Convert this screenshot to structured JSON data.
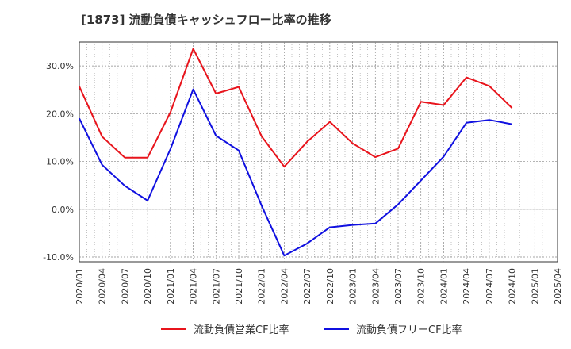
{
  "chart_data": {
    "type": "line",
    "title": "[1873]  流動負債キャッシュフロー比率の推移",
    "xlabel": "",
    "ylabel": "",
    "x": [
      "2020/01",
      "2020/04",
      "2020/07",
      "2020/10",
      "2021/01",
      "2021/04",
      "2021/07",
      "2021/10",
      "2022/01",
      "2022/04",
      "2022/07",
      "2022/10",
      "2023/01",
      "2023/04",
      "2023/07",
      "2023/10",
      "2024/01",
      "2024/04",
      "2024/07",
      "2024/10",
      "2025/01",
      "2025/04"
    ],
    "ylim": [
      -11,
      35
    ],
    "yticks": [
      -10,
      0,
      10,
      20,
      30
    ],
    "ytick_labels": [
      "-10.0%",
      "0.0%",
      "10.0%",
      "20.0%",
      "30.0%"
    ],
    "grid": true,
    "legend_position": "bottom",
    "series": [
      {
        "name": "流動負債営業CF比率",
        "color": "#e8141c",
        "points": [
          [
            "2020/01",
            25.7
          ],
          [
            "2020/04",
            15.2
          ],
          [
            "2020/07",
            10.8
          ],
          [
            "2020/10",
            10.8
          ],
          [
            "2021/01",
            20.3
          ],
          [
            "2021/04",
            33.6
          ],
          [
            "2021/07",
            24.2
          ],
          [
            "2021/10",
            25.6
          ],
          [
            "2022/01",
            15.3
          ],
          [
            "2022/04",
            8.9
          ],
          [
            "2022/07",
            14.1
          ],
          [
            "2022/10",
            18.3
          ],
          [
            "2023/01",
            13.8
          ],
          [
            "2023/04",
            10.9
          ],
          [
            "2023/07",
            12.7
          ],
          [
            "2023/10",
            22.5
          ],
          [
            "2024/01",
            21.8
          ],
          [
            "2024/04",
            27.6
          ],
          [
            "2024/07",
            25.8
          ],
          [
            "2024/10",
            21.2
          ]
        ]
      },
      {
        "name": "流動負債フリーCF比率",
        "color": "#1010e0",
        "points": [
          [
            "2020/01",
            19.0
          ],
          [
            "2020/04",
            9.3
          ],
          [
            "2020/07",
            4.9
          ],
          [
            "2020/10",
            1.8
          ],
          [
            "2021/01",
            12.6
          ],
          [
            "2021/04",
            25.1
          ],
          [
            "2021/07",
            15.4
          ],
          [
            "2021/10",
            12.3
          ],
          [
            "2022/01",
            0.8
          ],
          [
            "2022/04",
            -9.7
          ],
          [
            "2022/07",
            -7.2
          ],
          [
            "2022/10",
            -3.8
          ],
          [
            "2023/01",
            -3.3
          ],
          [
            "2023/04",
            -3.0
          ],
          [
            "2023/07",
            1.0
          ],
          [
            "2023/10",
            6.0
          ],
          [
            "2024/01",
            11.0
          ],
          [
            "2024/04",
            18.1
          ],
          [
            "2024/07",
            18.7
          ],
          [
            "2024/10",
            17.8
          ]
        ]
      }
    ]
  }
}
